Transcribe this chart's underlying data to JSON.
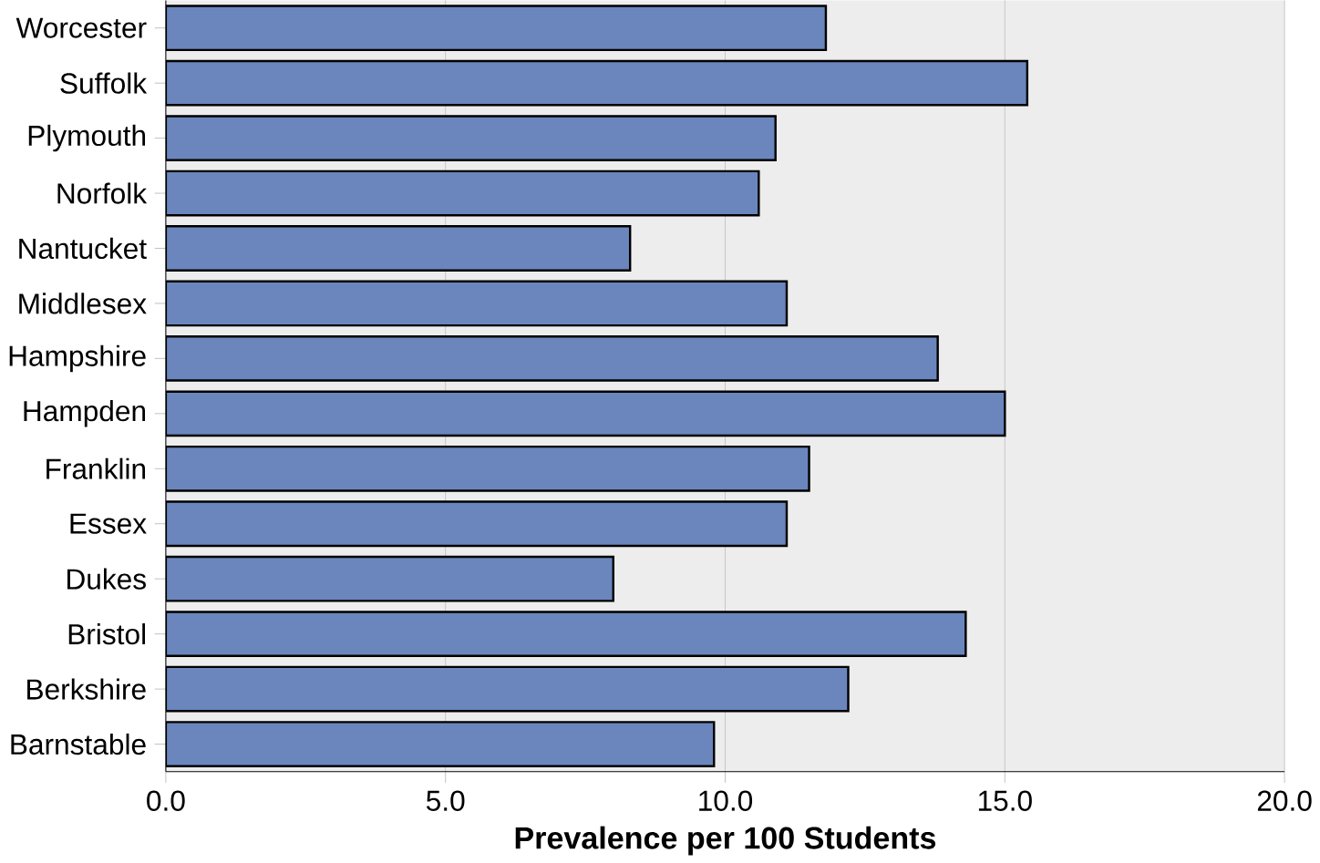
{
  "chart_data": {
    "type": "bar",
    "orientation": "horizontal",
    "xlabel": "Prevalence per 100 Students",
    "categories": [
      "Worcester",
      "Suffolk",
      "Plymouth",
      "Norfolk",
      "Nantucket",
      "Middlesex",
      "Hampshire",
      "Hampden",
      "Franklin",
      "Essex",
      "Dukes",
      "Bristol",
      "Berkshire",
      "Barnstable"
    ],
    "values": [
      11.8,
      15.4,
      10.9,
      10.6,
      8.3,
      11.1,
      13.8,
      15.0,
      11.5,
      11.1,
      8.0,
      14.3,
      12.2,
      9.8
    ],
    "color": "#6a86bd",
    "xlim": [
      0,
      20
    ],
    "xticks": [
      {
        "value": 0,
        "label": "0.0"
      },
      {
        "value": 5,
        "label": "5.0"
      },
      {
        "value": 10,
        "label": "10.0"
      },
      {
        "value": 15,
        "label": "15.0"
      },
      {
        "value": 20,
        "label": "20.0"
      }
    ],
    "grid": "x"
  }
}
